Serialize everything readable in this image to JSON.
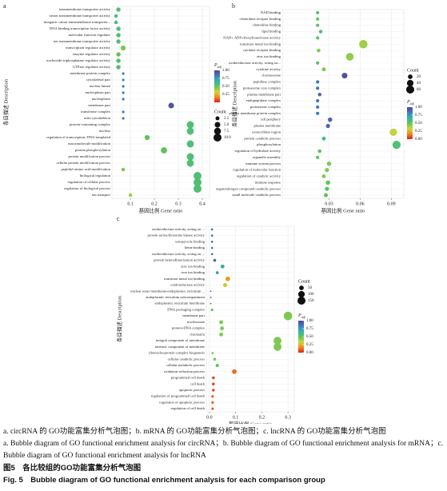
{
  "chart_data": [
    {
      "type": "scatter",
      "panel": "a",
      "categories": [
        "transmembrane transporter activity",
        "cation transmembrane transporter activity",
        "inorganic cation transmembrane transporter...",
        "DNA binding transcription factor activity",
        "molecular function regulator",
        "ion transmembrane transporter activity",
        "transcription regulator activity",
        "enzyme regulator activity",
        "nucleotide-triphosphatase regulator activity",
        "GTPase regulator activity",
        "membrane protein complex",
        "cytoskeletal part",
        "nuclear lumen",
        "nucleoplasm part",
        "nucleoplasm",
        "membrane part",
        "transferase complex",
        "actin cytoskeleton",
        "protein-containing complex",
        "nucleus",
        "regulation of transcription, DNA-templated",
        "macromolecule modification",
        "protein phosphorylation",
        "protein modification process",
        "cellular protein modification process",
        "peptidyl-amino acid modification",
        "biological regulation",
        "regulation of cellular process",
        "regulation of biological process",
        "ion transport"
      ],
      "x": [
        0.05,
        0.04,
        0.04,
        0.05,
        0.05,
        0.05,
        0.07,
        0.05,
        0.05,
        0.05,
        0.07,
        0.07,
        0.07,
        0.07,
        0.07,
        0.27,
        0.07,
        0.07,
        0.35,
        0.35,
        0.17,
        0.35,
        0.24,
        0.35,
        0.35,
        0.07,
        0.38,
        0.38,
        0.38,
        0.1
      ],
      "count": [
        3,
        2,
        2,
        3,
        3,
        3,
        4,
        3,
        3,
        3,
        1,
        1,
        1,
        1,
        1,
        5,
        1,
        1,
        8,
        8,
        4,
        8,
        6,
        8,
        8,
        2,
        10,
        10,
        10,
        2
      ],
      "p_adj": [
        0.55,
        0.6,
        0.6,
        0.55,
        0.55,
        0.55,
        0.45,
        0.5,
        0.55,
        0.55,
        0.85,
        0.85,
        0.85,
        0.85,
        0.85,
        0.95,
        0.85,
        0.85,
        0.55,
        0.55,
        0.5,
        0.55,
        0.5,
        0.55,
        0.55,
        0.45,
        0.55,
        0.55,
        0.55,
        0.4
      ],
      "xlabel": "基因比例 Gene ratio",
      "ylabel": "条目描述 Description",
      "xlim": [
        0.023,
        0.43
      ],
      "xticks": [
        0.1,
        0.2,
        0.3,
        0.4
      ],
      "grid": true,
      "clim": [
        0,
        1
      ],
      "colorscale": [
        "#e31a1c",
        "#f08a24",
        "#cbd63a",
        "#5cc35f",
        "#35b5a8",
        "#3a7fc4",
        "#5b3f97"
      ],
      "color_legend": {
        "title": "P",
        "title_sub": "adj",
        "ticks": [
          {
            "value": 0.25,
            "label": "0.25"
          },
          {
            "value": 0.5,
            "label": "0.50"
          },
          {
            "value": 0.75,
            "label": "0.75"
          },
          {
            "value": 1,
            "label": "1.00"
          }
        ]
      },
      "size_legend": {
        "title": "Count",
        "ticks": [
          2.5,
          {
            "value": 5,
            "label": "5.0"
          },
          7.5,
          {
            "value": 10,
            "label": "10.0"
          }
        ]
      }
    },
    {
      "type": "scatter",
      "panel": "b",
      "categories": [
        "NAD binding",
        "chemokine receptor binding",
        "chemokine binding",
        "lipid binding",
        "NAD+ ADP-ribosyltransferase activity",
        "transition metal ion binding",
        "cytokine receptor binding",
        "zinc ion binding",
        "oxidoreductase activity, acting on...",
        "cytokine activity",
        "chromosome",
        "peptidase complex",
        "proteasome core complex",
        "plasma membrane part",
        "endopeptidase complex",
        "proteasome complex",
        "plasma membrane protein complex",
        "cell periphery",
        "plasma membrane",
        "extracellular region",
        "protein catabolic process",
        "phosphorylation",
        "regulation of hydrolase activity",
        "organelle assembly",
        "immune system process",
        "regulation of molecular function",
        "regulation of catalytic activity",
        "immune response",
        "organonitrogen compound catabolic process",
        "small molecule catabolic process"
      ],
      "x": [
        0.019,
        0.019,
        0.019,
        0.022,
        0.019,
        0.063,
        0.02,
        0.05,
        0.019,
        0.025,
        0.045,
        0.019,
        0.019,
        0.021,
        0.019,
        0.019,
        0.019,
        0.031,
        0.029,
        0.092,
        0.025,
        0.095,
        0.021,
        0.019,
        0.03,
        0.028,
        0.025,
        0.029,
        0.028,
        0.027
      ],
      "count": [
        10,
        10,
        10,
        12,
        10,
        65,
        12,
        55,
        10,
        15,
        30,
        10,
        10,
        12,
        10,
        10,
        10,
        18,
        16,
        50,
        14,
        62,
        12,
        10,
        18,
        16,
        14,
        18,
        16,
        15
      ],
      "p_adj": [
        0.5,
        0.5,
        0.5,
        0.55,
        0.5,
        0.4,
        0.45,
        0.42,
        0.5,
        0.45,
        0.95,
        0.85,
        0.85,
        0.9,
        0.85,
        0.85,
        0.85,
        0.9,
        0.9,
        0.35,
        0.6,
        0.55,
        0.5,
        0.5,
        0.45,
        0.45,
        0.45,
        0.5,
        0.5,
        0.5
      ],
      "xlabel": "基因比例 Gene ratio",
      "ylabel": "条目描述 Description",
      "xlim": [
        -0.015,
        0.102
      ],
      "xticks": [
        0.03,
        0.06,
        0.09
      ],
      "grid": true,
      "clim": [
        0,
        1
      ],
      "colorscale": [
        "#e31a1c",
        "#f08a24",
        "#cbd63a",
        "#5cc35f",
        "#35b5a8",
        "#3a7fc4",
        "#5b3f97"
      ],
      "color_legend": {
        "title": "P",
        "title_sub": "adj",
        "ticks": [
          {
            "value": 0,
            "label": "0.00"
          },
          {
            "value": 0.25,
            "label": "0.25"
          },
          {
            "value": 0.5,
            "label": "0.50"
          },
          {
            "value": 0.75,
            "label": "0.75"
          },
          {
            "value": 1,
            "label": "1.00"
          }
        ]
      },
      "size_legend": {
        "title": "Count",
        "ticks": [
          20,
          40,
          60
        ]
      }
    },
    {
      "type": "scatter",
      "panel": "c",
      "categories": [
        "oxidoreductase activity, acting on ...",
        "protein serine/threonine kinase activity",
        "tetrapyrrole binding",
        "heme binding",
        "oxidoreductase activity, acting on ...",
        "protein heterodimerization activity",
        "zinc ion binding",
        "iron ion binding",
        "transition metal ion binding",
        "oxidoreductase activity",
        "nuclear outer membrane-endoplasmic reticulum ...",
        "endoplasmic reticulum subcompartment",
        "endoplasmic reticulum membrane",
        "DNA packaging complex",
        "membrane part",
        "nucleosome",
        "protein-DNA complex",
        "chromatin",
        "integral component of membrane",
        "intrinsic component of membrane",
        "ribonucleoprotein complex biogenesis",
        "cellular catabolic process",
        "cellular metabolic process",
        "oxidation-reduction process",
        "programmed cell death",
        "cell death",
        "apoptotic process",
        "regulation of programmed cell death",
        "regulation of apoptotic process",
        "regulation of cell death"
      ],
      "x": [
        0.01,
        0.01,
        0.01,
        0.01,
        0.01,
        0.02,
        0.05,
        0.03,
        0.07,
        0.06,
        0.005,
        0.005,
        0.005,
        0.01,
        0.3,
        0.045,
        0.048,
        0.045,
        0.26,
        0.26,
        0.012,
        0.02,
        0.03,
        0.095,
        0.015,
        0.015,
        0.015,
        0.012,
        0.012,
        0.012
      ],
      "count": [
        10,
        10,
        10,
        10,
        10,
        20,
        35,
        20,
        50,
        40,
        5,
        5,
        5,
        15,
        170,
        35,
        35,
        35,
        145,
        145,
        12,
        20,
        25,
        50,
        18,
        18,
        18,
        15,
        15,
        15
      ],
      "p_adj": [
        0.9,
        0.9,
        0.9,
        0.9,
        0.9,
        0.9,
        0.7,
        0.75,
        0.2,
        0.3,
        0.9,
        0.9,
        0.9,
        0.5,
        0.45,
        0.45,
        0.45,
        0.45,
        0.45,
        0.45,
        0.45,
        0.45,
        0.5,
        0.12,
        0.05,
        0.05,
        0.05,
        0.1,
        0.1,
        0.1
      ],
      "xlabel": "基因比例 Gene ratio",
      "ylabel": "条目描述 Description",
      "xlim": [
        -0.012,
        0.324
      ],
      "xticks": [
        {
          "value": 0,
          "label": "0.0"
        },
        0.1,
        0.2,
        0.3
      ],
      "grid": true,
      "clim": [
        0,
        1
      ],
      "colorscale": [
        "#e31a1c",
        "#f08a24",
        "#cbd63a",
        "#5cc35f",
        "#35b5a8",
        "#3a7fc4",
        "#5b3f97"
      ],
      "color_legend": {
        "title": "P",
        "title_sub": "adj",
        "ticks": [
          {
            "value": 0,
            "label": "0.00"
          },
          {
            "value": 0.25,
            "label": "0.25"
          },
          {
            "value": 0.5,
            "label": "0.50"
          },
          {
            "value": 0.75,
            "label": "0.75"
          },
          {
            "value": 1,
            "label": "1.00"
          }
        ]
      },
      "size_legend": {
        "title": "Count",
        "ticks": [
          50,
          100,
          150
        ]
      }
    }
  ],
  "caption": {
    "line_zh": "a. circRNA 的 GO功能富集分析气泡图；b. mRNA 的 GO功能富集分析气泡图；c. lncRNA 的 GO功能富集分析气泡图",
    "line_en": "a. Bubble diagram of GO functional enrichment analysis for circRNA；b. Bubble diagram of GO functional enrichment analysis for mRNA；c. Bubble diagram of GO functional enrichment analysis for lncRNA",
    "figure_zh": "图5　各比较组的GO功能富集分析气泡图",
    "figure_en": "Fig. 5　Bubble diagram of GO functional enrichment analysis for each comparison group"
  }
}
